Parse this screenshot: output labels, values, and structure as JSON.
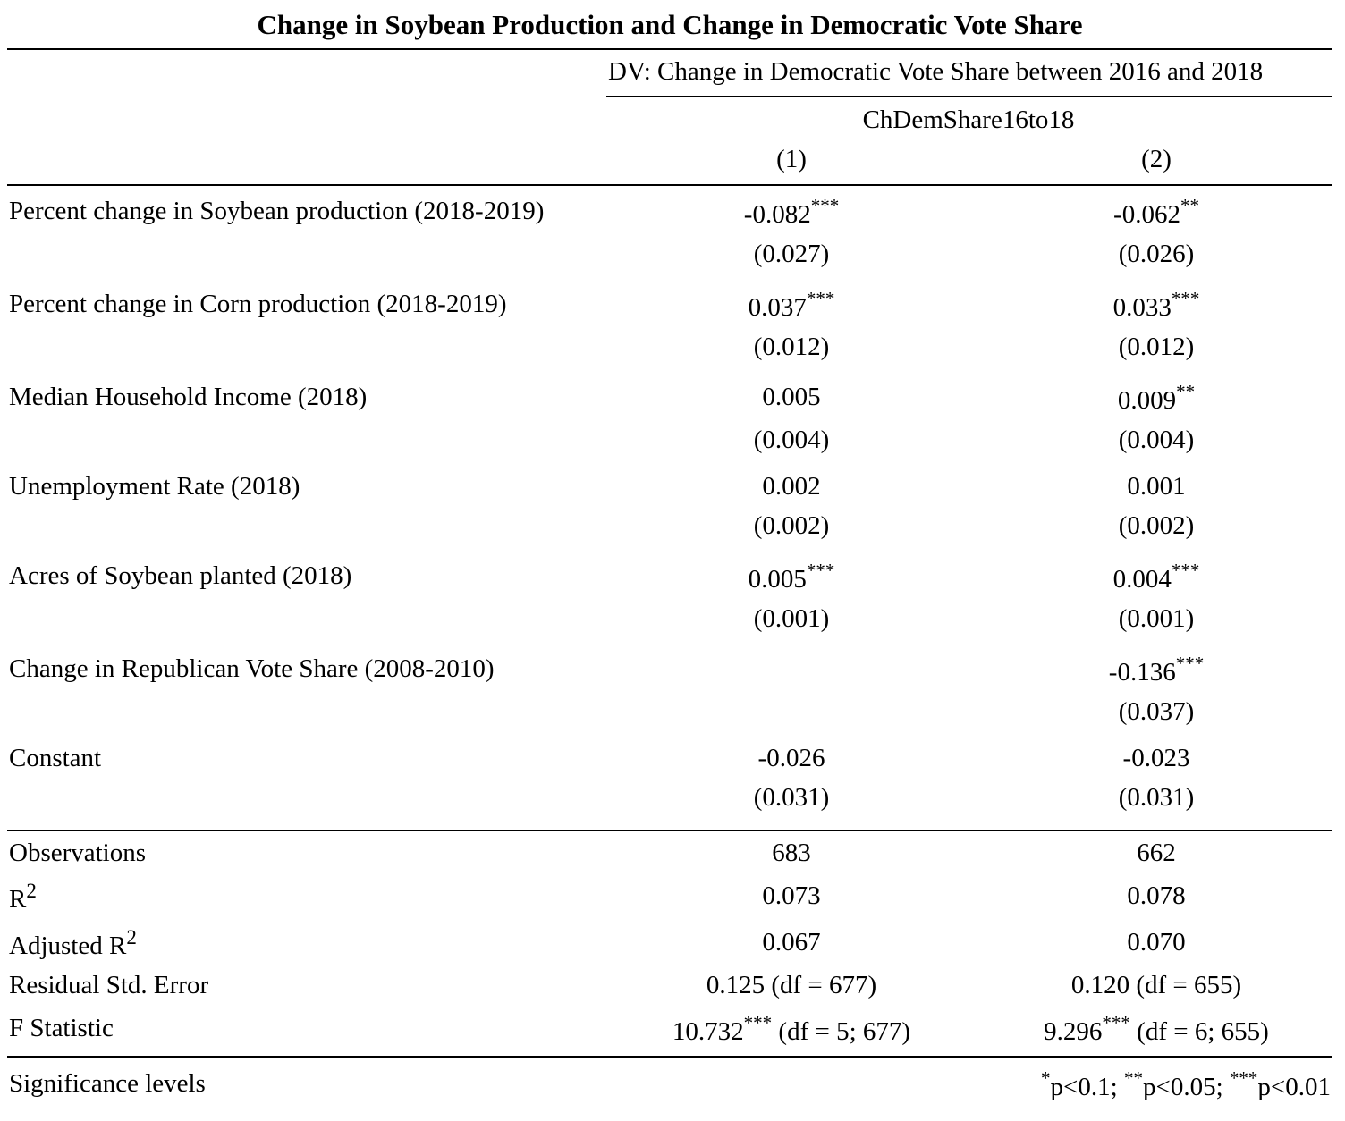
{
  "title": "Change in Soybean Production and Change in Democratic Vote Share",
  "header": {
    "dv": "DV: Change in Democratic Vote Share between 2016 and 2018",
    "depvar": "ChDemShare16to18",
    "col1": "(1)",
    "col2": "(2)"
  },
  "rows": [
    {
      "label": "Percent change in Soybean production (2018-2019)",
      "c1": "-0.082",
      "c1_sig": "***",
      "c1_se": "(0.027)",
      "c2": "-0.062",
      "c2_sig": "**",
      "c2_se": "(0.026)"
    },
    {
      "label": "Percent change in Corn production (2018-2019)",
      "c1": "0.037",
      "c1_sig": "***",
      "c1_se": "(0.012)",
      "c2": "0.033",
      "c2_sig": "***",
      "c2_se": "(0.012)"
    },
    {
      "label": "Median Household Income (2018)",
      "c1": "0.005",
      "c1_sig": "",
      "c1_se": "(0.004)",
      "c2": "0.009",
      "c2_sig": "**",
      "c2_se": "(0.004)"
    },
    {
      "label": "Unemployment Rate (2018)",
      "c1": "0.002",
      "c1_sig": "",
      "c1_se": "(0.002)",
      "c2": "0.001",
      "c2_sig": "",
      "c2_se": "(0.002)"
    },
    {
      "label": "Acres of Soybean planted (2018)",
      "c1": "0.005",
      "c1_sig": "***",
      "c1_se": "(0.001)",
      "c2": "0.004",
      "c2_sig": "***",
      "c2_se": "(0.001)"
    },
    {
      "label": "Change in Republican Vote Share (2008-2010)",
      "c1": "",
      "c1_sig": "",
      "c1_se": "",
      "c2": "-0.136",
      "c2_sig": "***",
      "c2_se": "(0.037)"
    },
    {
      "label": "Constant",
      "c1": "-0.026",
      "c1_sig": "",
      "c1_se": "(0.031)",
      "c2": "-0.023",
      "c2_sig": "",
      "c2_se": "(0.031)"
    }
  ],
  "stats": {
    "obs_label": "Observations",
    "obs_c1": "683",
    "obs_c2": "662",
    "r2_label": "R",
    "r2_sup": "2",
    "r2_c1": "0.073",
    "r2_c2": "0.078",
    "adjr2_label": "Adjusted R",
    "adjr2_sup": "2",
    "adjr2_c1": "0.067",
    "adjr2_c2": "0.070",
    "rse_label": "Residual Std. Error",
    "rse_c1": "0.125 (df = 677)",
    "rse_c2": "0.120 (df = 655)",
    "f_label": "F Statistic",
    "f_c1_val": "10.732",
    "f_c1_sig": "***",
    "f_c1_df": " (df = 5; 677)",
    "f_c2_val": "9.296",
    "f_c2_sig": "***",
    "f_c2_df": " (df = 6; 655)"
  },
  "footer": {
    "label": "Significance levels",
    "s1": "*",
    "p1": "p<0.1; ",
    "s2": "**",
    "p2": "p<0.05; ",
    "s3": "***",
    "p3": "p<0.01"
  }
}
